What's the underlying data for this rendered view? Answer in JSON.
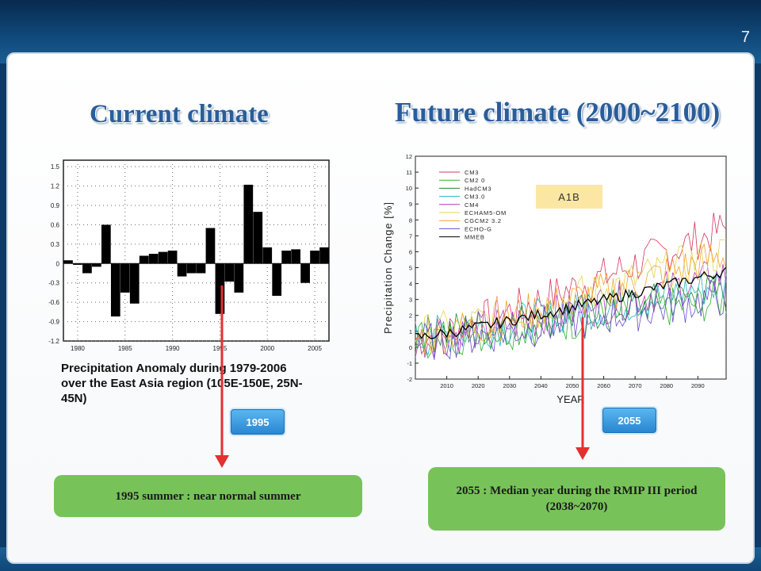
{
  "slide_number": "7",
  "headings": {
    "current": "Current climate",
    "future": "Future climate (2000~2100)"
  },
  "caption": "Precipitation Anomaly during 1979-2006 over the East Asia region (105E-150E, 25N-45N)",
  "badges": {
    "left": "1995",
    "right": "2055"
  },
  "notes": {
    "left": "1995 summer : near normal summer",
    "right": "2055  : Median year during the RMIP III period (2038~2070)"
  },
  "colors": {
    "accent": "#2a5d9a",
    "arrow": "#e53030",
    "note_bg": "#77c35a",
    "badge": "#2a86d0"
  },
  "chart_data": [
    {
      "type": "bar",
      "x": [
        1979,
        1980,
        1981,
        1982,
        1983,
        1984,
        1985,
        1986,
        1987,
        1988,
        1989,
        1990,
        1991,
        1992,
        1993,
        1994,
        1995,
        1996,
        1997,
        1998,
        1999,
        2000,
        2001,
        2002,
        2003,
        2004,
        2005,
        2006
      ],
      "values": [
        0.05,
        -0.02,
        -0.15,
        -0.05,
        0.6,
        -0.82,
        -0.45,
        -0.62,
        0.12,
        0.15,
        0.18,
        0.2,
        -0.2,
        -0.15,
        -0.15,
        0.55,
        -0.78,
        -0.28,
        -0.45,
        1.22,
        0.8,
        0.25,
        -0.5,
        0.2,
        0.22,
        -0.3,
        0.2,
        0.25
      ],
      "yticks": [
        "1.5",
        "1.2",
        "0.9",
        "0.6",
        "0.3",
        "0",
        "-0.3",
        "-0.6",
        "-0.9",
        "-1.2"
      ],
      "xticks": [
        "1980",
        "1985",
        "1990",
        "1995",
        "2000",
        "2005"
      ],
      "ylim": [
        -1.2,
        1.6
      ],
      "grid": "dotted"
    },
    {
      "type": "line",
      "title": "A1B",
      "xlabel": "YEAR",
      "ylabel": "Precipitation Change [%]",
      "xlim": [
        2000,
        2099
      ],
      "ylim": [
        -2,
        12
      ],
      "yticks": [
        "12",
        "11",
        "10",
        "9",
        "8",
        "7",
        "6",
        "5",
        "4",
        "3",
        "2",
        "1",
        "0",
        "-1",
        "-2"
      ],
      "xticks": [
        "2010",
        "2020",
        "2030",
        "2040",
        "2050",
        "2060",
        "2070",
        "2080",
        "2090"
      ],
      "legend_position": "top-left",
      "series": [
        {
          "name": "CM3",
          "color": "#d8345f",
          "start": 0.5,
          "end": 7.5
        },
        {
          "name": "CM2 0",
          "color": "#2fb02f",
          "start": 0.5,
          "end": 3.0
        },
        {
          "name": "HadCM3",
          "color": "#1f8a3a",
          "start": 0.8,
          "end": 3.5
        },
        {
          "name": "CM3.0",
          "color": "#27b3c2",
          "start": 0.6,
          "end": 4.0
        },
        {
          "name": "CM4",
          "color": "#b03fb0",
          "start": 0.4,
          "end": 4.5
        },
        {
          "name": "ECHAM5-OM",
          "color": "#e6d24a",
          "start": 0.7,
          "end": 6.0
        },
        {
          "name": "CGCM2 3.2",
          "color": "#f0a32c",
          "start": 0.5,
          "end": 5.8
        },
        {
          "name": "ECHO-G",
          "color": "#6a4bd0",
          "start": 0.3,
          "end": 3.2
        },
        {
          "name": "MMEB",
          "color": "#000000",
          "start": 0.6,
          "end": 4.8
        }
      ]
    }
  ]
}
